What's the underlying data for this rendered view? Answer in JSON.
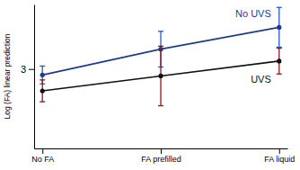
{
  "chart_data": {
    "type": "line",
    "y_label": "Log (FA) linear prediction",
    "categories": [
      "No FA",
      "FA prefilled",
      "FA liquid"
    ],
    "series": [
      {
        "name": "No UVS",
        "color": "#1f3b8f",
        "marker": "circle",
        "values": [
          2.94,
          3.2,
          3.42
        ],
        "errors": [
          0.09,
          0.18,
          0.2
        ]
      },
      {
        "name": "UVS",
        "color": "#111111",
        "marker": "circle",
        "values": [
          2.78,
          2.93,
          3.08
        ],
        "errors": [
          0.11,
          0.3,
          0.13
        ]
      }
    ],
    "ylim": [
      2.2,
      3.65
    ],
    "yticks": [
      3
    ],
    "grid": false
  }
}
